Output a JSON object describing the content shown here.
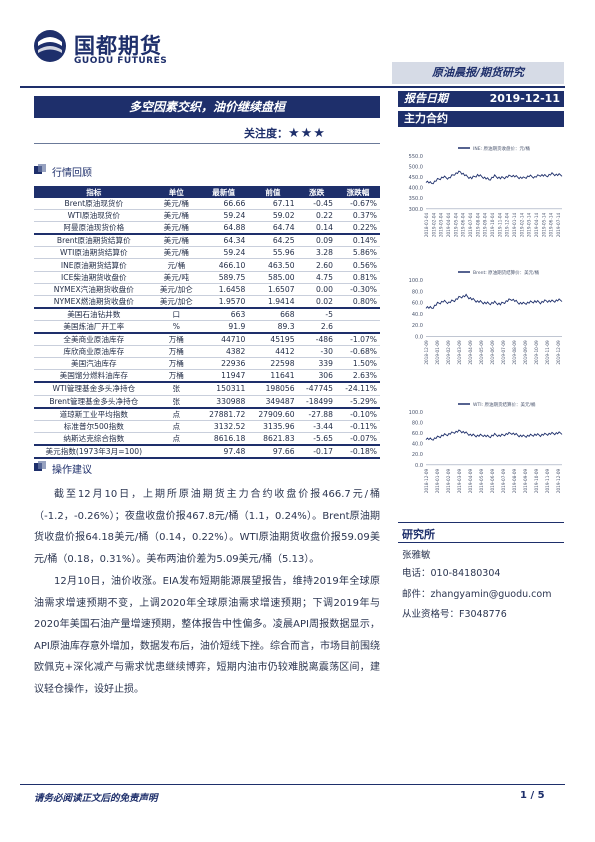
{
  "header": {
    "logo_cn": "国都期货",
    "logo_en": "GUODU FUTURES",
    "category": "原油晨报/期货研究"
  },
  "report": {
    "title": "多空因素交织，油价继续盘桓",
    "attention_label": "关注度：",
    "attention_stars": "★★★",
    "date_label": "报告日期",
    "date_value": "2019-12-11",
    "contract_label": "主力合约"
  },
  "market_review": {
    "heading": "行情回顾",
    "columns": [
      "指标",
      "单位",
      "最新值",
      "前值",
      "涨跌",
      "涨跌幅"
    ],
    "rows": [
      [
        "Brent原油现货价",
        "美元/桶",
        "66.66",
        "67.11",
        "-0.45",
        "-0.67%"
      ],
      [
        "WTI原油现货价",
        "美元/桶",
        "59.24",
        "59.02",
        "0.22",
        "0.37%"
      ],
      [
        "阿曼原油现货价格",
        "美元/桶",
        "64.88",
        "64.74",
        "0.14",
        "0.22%"
      ],
      [
        "Brent原油期货结算价",
        "美元/桶",
        "64.34",
        "64.25",
        "0.09",
        "0.14%"
      ],
      [
        "WTI原油期货结算价",
        "美元/桶",
        "59.24",
        "55.96",
        "3.28",
        "5.86%"
      ],
      [
        "INE原油期货结算价",
        "元/桶",
        "466.10",
        "463.50",
        "2.60",
        "0.56%"
      ],
      [
        "ICE柴油期货收盘价",
        "美元/吨",
        "589.75",
        "585.00",
        "4.75",
        "0.81%"
      ],
      [
        "NYMEX汽油期货收盘价",
        "美元/加仑",
        "1.6458",
        "1.6507",
        "0.00",
        "-0.30%"
      ],
      [
        "NYMEX燃油期货收盘价",
        "美元/加仑",
        "1.9570",
        "1.9414",
        "0.02",
        "0.80%"
      ],
      [
        "美国石油钻井数",
        "口",
        "663",
        "668",
        "-5",
        ""
      ],
      [
        "美国炼油厂开工率",
        "%",
        "91.9",
        "89.3",
        "2.6",
        ""
      ],
      [
        "全美商业原油库存",
        "万桶",
        "44710",
        "45195",
        "-486",
        "-1.07%"
      ],
      [
        "库欣商业原油库存",
        "万桶",
        "4382",
        "4412",
        "-30",
        "-0.68%"
      ],
      [
        "美国汽油库存",
        "万桶",
        "22936",
        "22598",
        "339",
        "1.50%"
      ],
      [
        "美国馏分燃料油库存",
        "万桶",
        "11947",
        "11641",
        "306",
        "2.63%"
      ],
      [
        "WTI管理基金多头净持仓",
        "张",
        "150311",
        "198056",
        "-47745",
        "-24.11%"
      ],
      [
        "Brent管理基金多头净持仓",
        "张",
        "330988",
        "349487",
        "-18499",
        "-5.29%"
      ],
      [
        "道琼斯工业平均指数",
        "点",
        "27881.72",
        "27909.60",
        "-27.88",
        "-0.10%"
      ],
      [
        "标准普尔500指数",
        "点",
        "3132.52",
        "3135.96",
        "-3.44",
        "-0.11%"
      ],
      [
        "纳斯达克综合指数",
        "点",
        "8616.18",
        "8621.83",
        "-5.65",
        "-0.07%"
      ],
      [
        "美元指数(1973年3月=100)",
        "",
        "97.48",
        "97.66",
        "-0.17",
        "-0.18%"
      ]
    ]
  },
  "advice": {
    "heading": "操作建议",
    "paragraphs": [
      "截至12月10日，上期所原油期货主力合约收盘价报466.7元/桶（-1.2，-0.26%）；夜盘收盘价报467.8元/桶（1.1，0.24%）。Brent原油期货收盘价报64.18美元/桶（0.14，0.22%）。WTI原油期货收盘价报59.09美元/桶（0.18，0.31%）。美布两油价差为5.09美元/桶（5.13）。",
      "12月10日，油价收涨。EIA发布短期能源展望报告，维持2019年全球原油需求增速预期不变，上调2020年全球原油需求增速预期；下调2019年与2020年美国石油产量增速预期，整体报告中性偏多。凌晨API周报数据显示，API原油库存意外增加，数据发布后，油价短线下挫。综合而言，市场目前围绕欧佩克+深化减产与需求忧患继续博弈，短期内油市仍较难脱离震荡区间，建议轻仓操作，设好止损。"
    ]
  },
  "charts": [
    {
      "legend": "INE: 原油期货收盘价：元/桶",
      "yticks": [
        "550.0",
        "500.0",
        "450.0",
        "400.0",
        "350.0",
        "300.0"
      ],
      "ylim": [
        300,
        550
      ],
      "xticks": [
        "2018-01-04",
        "2019-02-04",
        "2019-03-04",
        "2019-04-04",
        "2019-05-04",
        "2019-06-04",
        "2019-07-04",
        "2019-08-04",
        "2019-09-04",
        "2019-10-04",
        "2019-11-04",
        "2019-12-04",
        "2019-01-14",
        "2019-02-14",
        "2019-03-14",
        "2019-04-14",
        "2019-05-14",
        "2019-06-14",
        "2019-07-14"
      ]
    },
    {
      "legend": "Brent: 原油期货结算价：美元/桶",
      "yticks": [
        "100.0",
        "80.0",
        "60.0",
        "40.0",
        "20.0",
        "0.0"
      ],
      "ylim": [
        0,
        100
      ],
      "xticks": [
        "2018-12-09",
        "2019-01-09",
        "2019-02-09",
        "2019-03-09",
        "2019-04-09",
        "2019-05-09",
        "2019-06-09",
        "2019-07-09",
        "2019-08-09",
        "2019-09-09",
        "2019-10-09",
        "2019-11-09",
        "2019-12-09"
      ]
    },
    {
      "legend": "WTI: 原油期货结算价：美元/桶",
      "yticks": [
        "100.0",
        "80.0",
        "60.0",
        "40.0",
        "20.0",
        "0.0"
      ],
      "ylim": [
        0,
        100
      ],
      "xticks": [
        "2018-12-09",
        "2019-01-09",
        "2019-02-09",
        "2019-03-09",
        "2019-04-09",
        "2019-05-09",
        "2019-06-09",
        "2019-07-09",
        "2019-08-09",
        "2019-09-09",
        "2019-10-09",
        "2019-11-09",
        "2019-12-09"
      ]
    }
  ],
  "research": {
    "title": "研究所",
    "name": "张雅敏",
    "phone": "电话：010-84180304",
    "email": "邮件：zhangyamin@guodu.com",
    "license": "从业资格号：F3048776"
  },
  "footer": {
    "disclaimer": "请务必阅读正文后的免责声明",
    "page": "1 / 5"
  }
}
